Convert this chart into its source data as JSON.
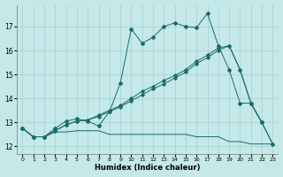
{
  "title": "",
  "xlabel": "Humidex (Indice chaleur)",
  "ylabel": "",
  "background_color": "#c5e8e8",
  "grid_color": "#aad4d4",
  "line_color": "#1a6b6b",
  "xlim": [
    -0.5,
    23.5
  ],
  "ylim": [
    11.7,
    17.9
  ],
  "yticks": [
    12,
    13,
    14,
    15,
    16,
    17
  ],
  "xticks": [
    0,
    1,
    2,
    3,
    4,
    5,
    6,
    7,
    8,
    9,
    10,
    11,
    12,
    13,
    14,
    15,
    16,
    17,
    18,
    19,
    20,
    21,
    22,
    23
  ],
  "line1_x": [
    0,
    1,
    2,
    3,
    4,
    5,
    6,
    7,
    8,
    9,
    10,
    11,
    12,
    13,
    14,
    15,
    16,
    17,
    18,
    19,
    20,
    21,
    22,
    23
  ],
  "line1_y": [
    12.75,
    12.4,
    12.4,
    12.6,
    12.6,
    12.65,
    12.65,
    12.65,
    12.5,
    12.5,
    12.5,
    12.5,
    12.5,
    12.5,
    12.5,
    12.5,
    12.4,
    12.4,
    12.4,
    12.2,
    12.2,
    12.1,
    12.1,
    12.1
  ],
  "line2_x": [
    0,
    1,
    2,
    3,
    4,
    5,
    6,
    7,
    8,
    9,
    10,
    11,
    12,
    13,
    14,
    15,
    16,
    17,
    18,
    19,
    20,
    21,
    22,
    23
  ],
  "line2_y": [
    12.75,
    12.4,
    12.4,
    12.65,
    12.9,
    13.05,
    13.1,
    13.25,
    13.45,
    13.65,
    13.9,
    14.15,
    14.4,
    14.6,
    14.85,
    15.1,
    15.45,
    15.7,
    16.0,
    16.2,
    15.2,
    13.8,
    13.0,
    12.1
  ],
  "line3_x": [
    0,
    1,
    2,
    3,
    4,
    5,
    6,
    7,
    8,
    9,
    10,
    11,
    12,
    13,
    14,
    15,
    16,
    17,
    18,
    19,
    20,
    21,
    22,
    23
  ],
  "line3_y": [
    12.75,
    12.4,
    12.4,
    12.65,
    12.9,
    13.05,
    13.1,
    13.3,
    13.5,
    13.7,
    14.0,
    14.3,
    14.5,
    14.75,
    14.95,
    15.2,
    15.55,
    15.8,
    16.1,
    16.2,
    15.2,
    13.8,
    13.0,
    12.1
  ],
  "line4_x": [
    0,
    1,
    2,
    3,
    4,
    5,
    6,
    7,
    8,
    9,
    10,
    11,
    12,
    13,
    14,
    15,
    16,
    17,
    18,
    19,
    20,
    21,
    22
  ],
  "line4_y": [
    12.75,
    12.4,
    12.4,
    12.75,
    13.05,
    13.15,
    13.05,
    12.85,
    13.45,
    14.65,
    16.9,
    16.3,
    16.55,
    17.0,
    17.15,
    17.0,
    16.95,
    17.55,
    16.2,
    15.2,
    13.8,
    13.8,
    13.0
  ]
}
